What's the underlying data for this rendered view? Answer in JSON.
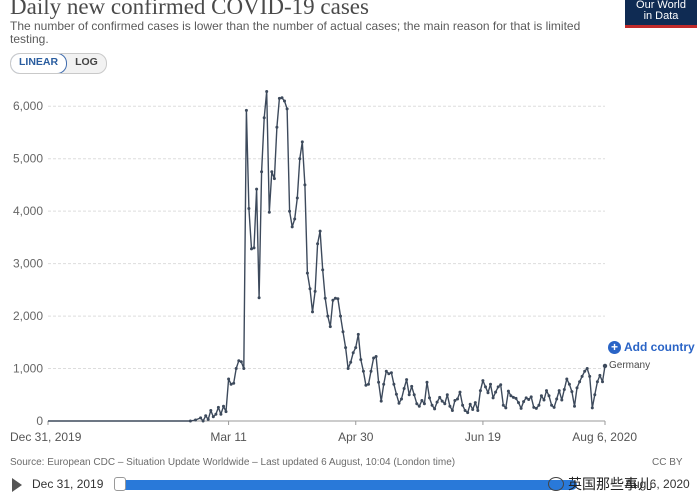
{
  "header": {
    "title": "Daily new confirmed COVID-19 cases",
    "subtitle": "The number of confirmed cases is lower than the number of actual cases; the main reason for that is limited testing.",
    "logo_line1": "Our World",
    "logo_line2": "in Data"
  },
  "scale_toggle": {
    "linear_label": "LINEAR",
    "log_label": "LOG",
    "selected": "LINEAR"
  },
  "controls": {
    "add_country_label": "Add country",
    "add_icon": "plus-circle-icon"
  },
  "footer": {
    "source": "Source: European CDC – Situation Update Worldwide – Last updated 6 August, 10:04 (London time)",
    "license": "CC BY"
  },
  "timeline": {
    "start_label": "Dec 31, 2019",
    "end_label": "Aug 6, 2020",
    "play_icon": "play-icon"
  },
  "watermark": {
    "text": "英国那些事儿"
  },
  "colors": {
    "line": "#3d4a5c",
    "accent": "#2a64c6",
    "slider": "#2979d9"
  },
  "chart_data": {
    "type": "line",
    "x_start": "2019-12-31",
    "x_end": "2020-08-06",
    "xlim": [
      "2019-12-31",
      "2020-08-06"
    ],
    "ylim": [
      0,
      6500
    ],
    "x_ticks": [
      {
        "date": "2019-12-31",
        "label": "Dec 31, 2019"
      },
      {
        "date": "2020-03-11",
        "label": "Mar 11"
      },
      {
        "date": "2020-04-30",
        "label": "Apr 30"
      },
      {
        "date": "2020-06-19",
        "label": "Jun 19"
      },
      {
        "date": "2020-08-06",
        "label": "Aug 6, 2020"
      }
    ],
    "y_ticks": [
      {
        "value": 0,
        "label": "0"
      },
      {
        "value": 1000,
        "label": "1,000"
      },
      {
        "value": 2000,
        "label": "2,000"
      },
      {
        "value": 3000,
        "label": "3,000"
      },
      {
        "value": 4000,
        "label": "4,000"
      },
      {
        "value": 5000,
        "label": "5,000"
      },
      {
        "value": 6000,
        "label": "6,000"
      }
    ],
    "grid": "horizontal-dashed",
    "series": [
      {
        "name": "Germany",
        "points": [
          [
            "2019-12-31",
            0
          ],
          [
            "2020-01-15",
            0
          ],
          [
            "2020-01-28",
            0
          ],
          [
            "2020-02-05",
            0
          ],
          [
            "2020-02-20",
            0
          ],
          [
            "2020-02-25",
            0
          ],
          [
            "2020-02-27",
            20
          ],
          [
            "2020-02-29",
            60
          ],
          [
            "2020-03-01",
            0
          ],
          [
            "2020-03-02",
            100
          ],
          [
            "2020-03-03",
            30
          ],
          [
            "2020-03-04",
            200
          ],
          [
            "2020-03-05",
            80
          ],
          [
            "2020-03-06",
            130
          ],
          [
            "2020-03-07",
            260
          ],
          [
            "2020-03-08",
            130
          ],
          [
            "2020-03-09",
            280
          ],
          [
            "2020-03-10",
            180
          ],
          [
            "2020-03-11",
            800
          ],
          [
            "2020-03-12",
            700
          ],
          [
            "2020-03-13",
            720
          ],
          [
            "2020-03-14",
            1000
          ],
          [
            "2020-03-15",
            1150
          ],
          [
            "2020-03-16",
            1130
          ],
          [
            "2020-03-17",
            1000
          ],
          [
            "2020-03-18",
            5920
          ],
          [
            "2020-03-19",
            4050
          ],
          [
            "2020-03-20",
            3280
          ],
          [
            "2020-03-21",
            3300
          ],
          [
            "2020-03-22",
            4420
          ],
          [
            "2020-03-23",
            2350
          ],
          [
            "2020-03-24",
            4750
          ],
          [
            "2020-03-25",
            5780
          ],
          [
            "2020-03-26",
            6280
          ],
          [
            "2020-03-27",
            3980
          ],
          [
            "2020-03-28",
            4750
          ],
          [
            "2020-03-29",
            4620
          ],
          [
            "2020-03-30",
            5600
          ],
          [
            "2020-03-31",
            6150
          ],
          [
            "2020-04-01",
            6160
          ],
          [
            "2020-04-02",
            6100
          ],
          [
            "2020-04-03",
            5950
          ],
          [
            "2020-04-04",
            4000
          ],
          [
            "2020-04-05",
            3700
          ],
          [
            "2020-04-06",
            3850
          ],
          [
            "2020-04-07",
            4250
          ],
          [
            "2020-04-08",
            5000
          ],
          [
            "2020-04-09",
            5320
          ],
          [
            "2020-04-10",
            4500
          ],
          [
            "2020-04-11",
            2820
          ],
          [
            "2020-04-12",
            2520
          ],
          [
            "2020-04-13",
            2080
          ],
          [
            "2020-04-14",
            2470
          ],
          [
            "2020-04-15",
            3380
          ],
          [
            "2020-04-16",
            3620
          ],
          [
            "2020-04-17",
            2880
          ],
          [
            "2020-04-18",
            2340
          ],
          [
            "2020-04-19",
            2000
          ],
          [
            "2020-04-20",
            1800
          ],
          [
            "2020-04-21",
            2300
          ],
          [
            "2020-04-22",
            2340
          ],
          [
            "2020-04-23",
            2330
          ],
          [
            "2020-04-24",
            2000
          ],
          [
            "2020-04-25",
            1700
          ],
          [
            "2020-04-26",
            1400
          ],
          [
            "2020-04-27",
            1000
          ],
          [
            "2020-04-28",
            1120
          ],
          [
            "2020-04-29",
            1300
          ],
          [
            "2020-04-30",
            1400
          ],
          [
            "2020-05-01",
            1650
          ],
          [
            "2020-05-02",
            1170
          ],
          [
            "2020-05-03",
            950
          ],
          [
            "2020-05-04",
            680
          ],
          [
            "2020-05-05",
            700
          ],
          [
            "2020-05-06",
            950
          ],
          [
            "2020-05-07",
            1200
          ],
          [
            "2020-05-08",
            1230
          ],
          [
            "2020-05-09",
            740
          ],
          [
            "2020-05-10",
            380
          ],
          [
            "2020-05-11",
            700
          ],
          [
            "2020-05-12",
            950
          ],
          [
            "2020-05-13",
            900
          ],
          [
            "2020-05-14",
            920
          ],
          [
            "2020-05-15",
            700
          ],
          [
            "2020-05-16",
            510
          ],
          [
            "2020-05-17",
            340
          ],
          [
            "2020-05-18",
            420
          ],
          [
            "2020-05-19",
            620
          ],
          [
            "2020-05-20",
            790
          ],
          [
            "2020-05-21",
            500
          ],
          [
            "2020-05-22",
            660
          ],
          [
            "2020-05-23",
            500
          ],
          [
            "2020-05-24",
            330
          ],
          [
            "2020-05-25",
            280
          ],
          [
            "2020-05-26",
            390
          ],
          [
            "2020-05-27",
            330
          ],
          [
            "2020-05-28",
            740
          ],
          [
            "2020-05-29",
            440
          ],
          [
            "2020-05-30",
            300
          ],
          [
            "2020-05-31",
            230
          ],
          [
            "2020-06-01",
            360
          ],
          [
            "2020-06-02",
            450
          ],
          [
            "2020-06-03",
            380
          ],
          [
            "2020-06-04",
            330
          ],
          [
            "2020-06-05",
            500
          ],
          [
            "2020-06-06",
            280
          ],
          [
            "2020-06-07",
            200
          ],
          [
            "2020-06-08",
            390
          ],
          [
            "2020-06-09",
            420
          ],
          [
            "2020-06-10",
            550
          ],
          [
            "2020-06-11",
            300
          ],
          [
            "2020-06-12",
            200
          ],
          [
            "2020-06-13",
            160
          ],
          [
            "2020-06-14",
            320
          ],
          [
            "2020-06-15",
            220
          ],
          [
            "2020-06-16",
            350
          ],
          [
            "2020-06-17",
            200
          ],
          [
            "2020-06-18",
            580
          ],
          [
            "2020-06-19",
            770
          ],
          [
            "2020-06-20",
            650
          ],
          [
            "2020-06-21",
            540
          ],
          [
            "2020-06-22",
            700
          ],
          [
            "2020-06-23",
            440
          ],
          [
            "2020-06-24",
            550
          ],
          [
            "2020-06-25",
            650
          ],
          [
            "2020-06-26",
            690
          ],
          [
            "2020-06-27",
            300
          ],
          [
            "2020-06-28",
            250
          ],
          [
            "2020-06-29",
            570
          ],
          [
            "2020-06-30",
            480
          ],
          [
            "2020-07-01",
            450
          ],
          [
            "2020-07-02",
            430
          ],
          [
            "2020-07-03",
            350
          ],
          [
            "2020-07-04",
            240
          ],
          [
            "2020-07-05",
            370
          ],
          [
            "2020-07-06",
            440
          ],
          [
            "2020-07-07",
            410
          ],
          [
            "2020-07-08",
            460
          ],
          [
            "2020-07-09",
            260
          ],
          [
            "2020-07-10",
            240
          ],
          [
            "2020-07-11",
            300
          ],
          [
            "2020-07-12",
            480
          ],
          [
            "2020-07-13",
            400
          ],
          [
            "2020-07-14",
            580
          ],
          [
            "2020-07-15",
            480
          ],
          [
            "2020-07-16",
            300
          ],
          [
            "2020-07-17",
            260
          ],
          [
            "2020-07-18",
            420
          ],
          [
            "2020-07-19",
            580
          ],
          [
            "2020-07-20",
            400
          ],
          [
            "2020-07-21",
            600
          ],
          [
            "2020-07-22",
            800
          ],
          [
            "2020-07-23",
            700
          ],
          [
            "2020-07-24",
            560
          ],
          [
            "2020-07-25",
            280
          ],
          [
            "2020-07-26",
            630
          ],
          [
            "2020-07-27",
            750
          ],
          [
            "2020-07-28",
            850
          ],
          [
            "2020-07-29",
            950
          ],
          [
            "2020-07-30",
            1000
          ],
          [
            "2020-07-31",
            850
          ],
          [
            "2020-08-01",
            250
          ],
          [
            "2020-08-02",
            500
          ],
          [
            "2020-08-03",
            750
          ],
          [
            "2020-08-04",
            870
          ],
          [
            "2020-08-05",
            750
          ],
          [
            "2020-08-06",
            1050
          ]
        ]
      }
    ]
  }
}
